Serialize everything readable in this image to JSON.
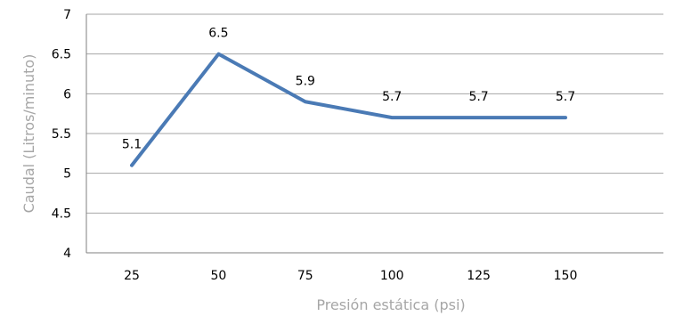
{
  "chart_data": {
    "type": "line",
    "categories": [
      "25",
      "50",
      "75",
      "100",
      "125",
      "150"
    ],
    "series": [
      {
        "values": [
          5.1,
          6.5,
          5.9,
          5.7,
          5.7,
          5.7
        ],
        "data_labels": [
          "5.1",
          "6.5",
          "5.9",
          "5.7",
          "5.7",
          "5.7"
        ],
        "color": "#4a7ab5"
      }
    ],
    "ylim": [
      4,
      7
    ],
    "yticks": [
      "4",
      "4.5",
      "5",
      "5.5",
      "6",
      "6.5",
      "7"
    ],
    "xlabel": "Presión estática (psi)",
    "ylabel": "Caudal (Litros/minuto)",
    "title": "",
    "grid": true,
    "legend": false
  }
}
